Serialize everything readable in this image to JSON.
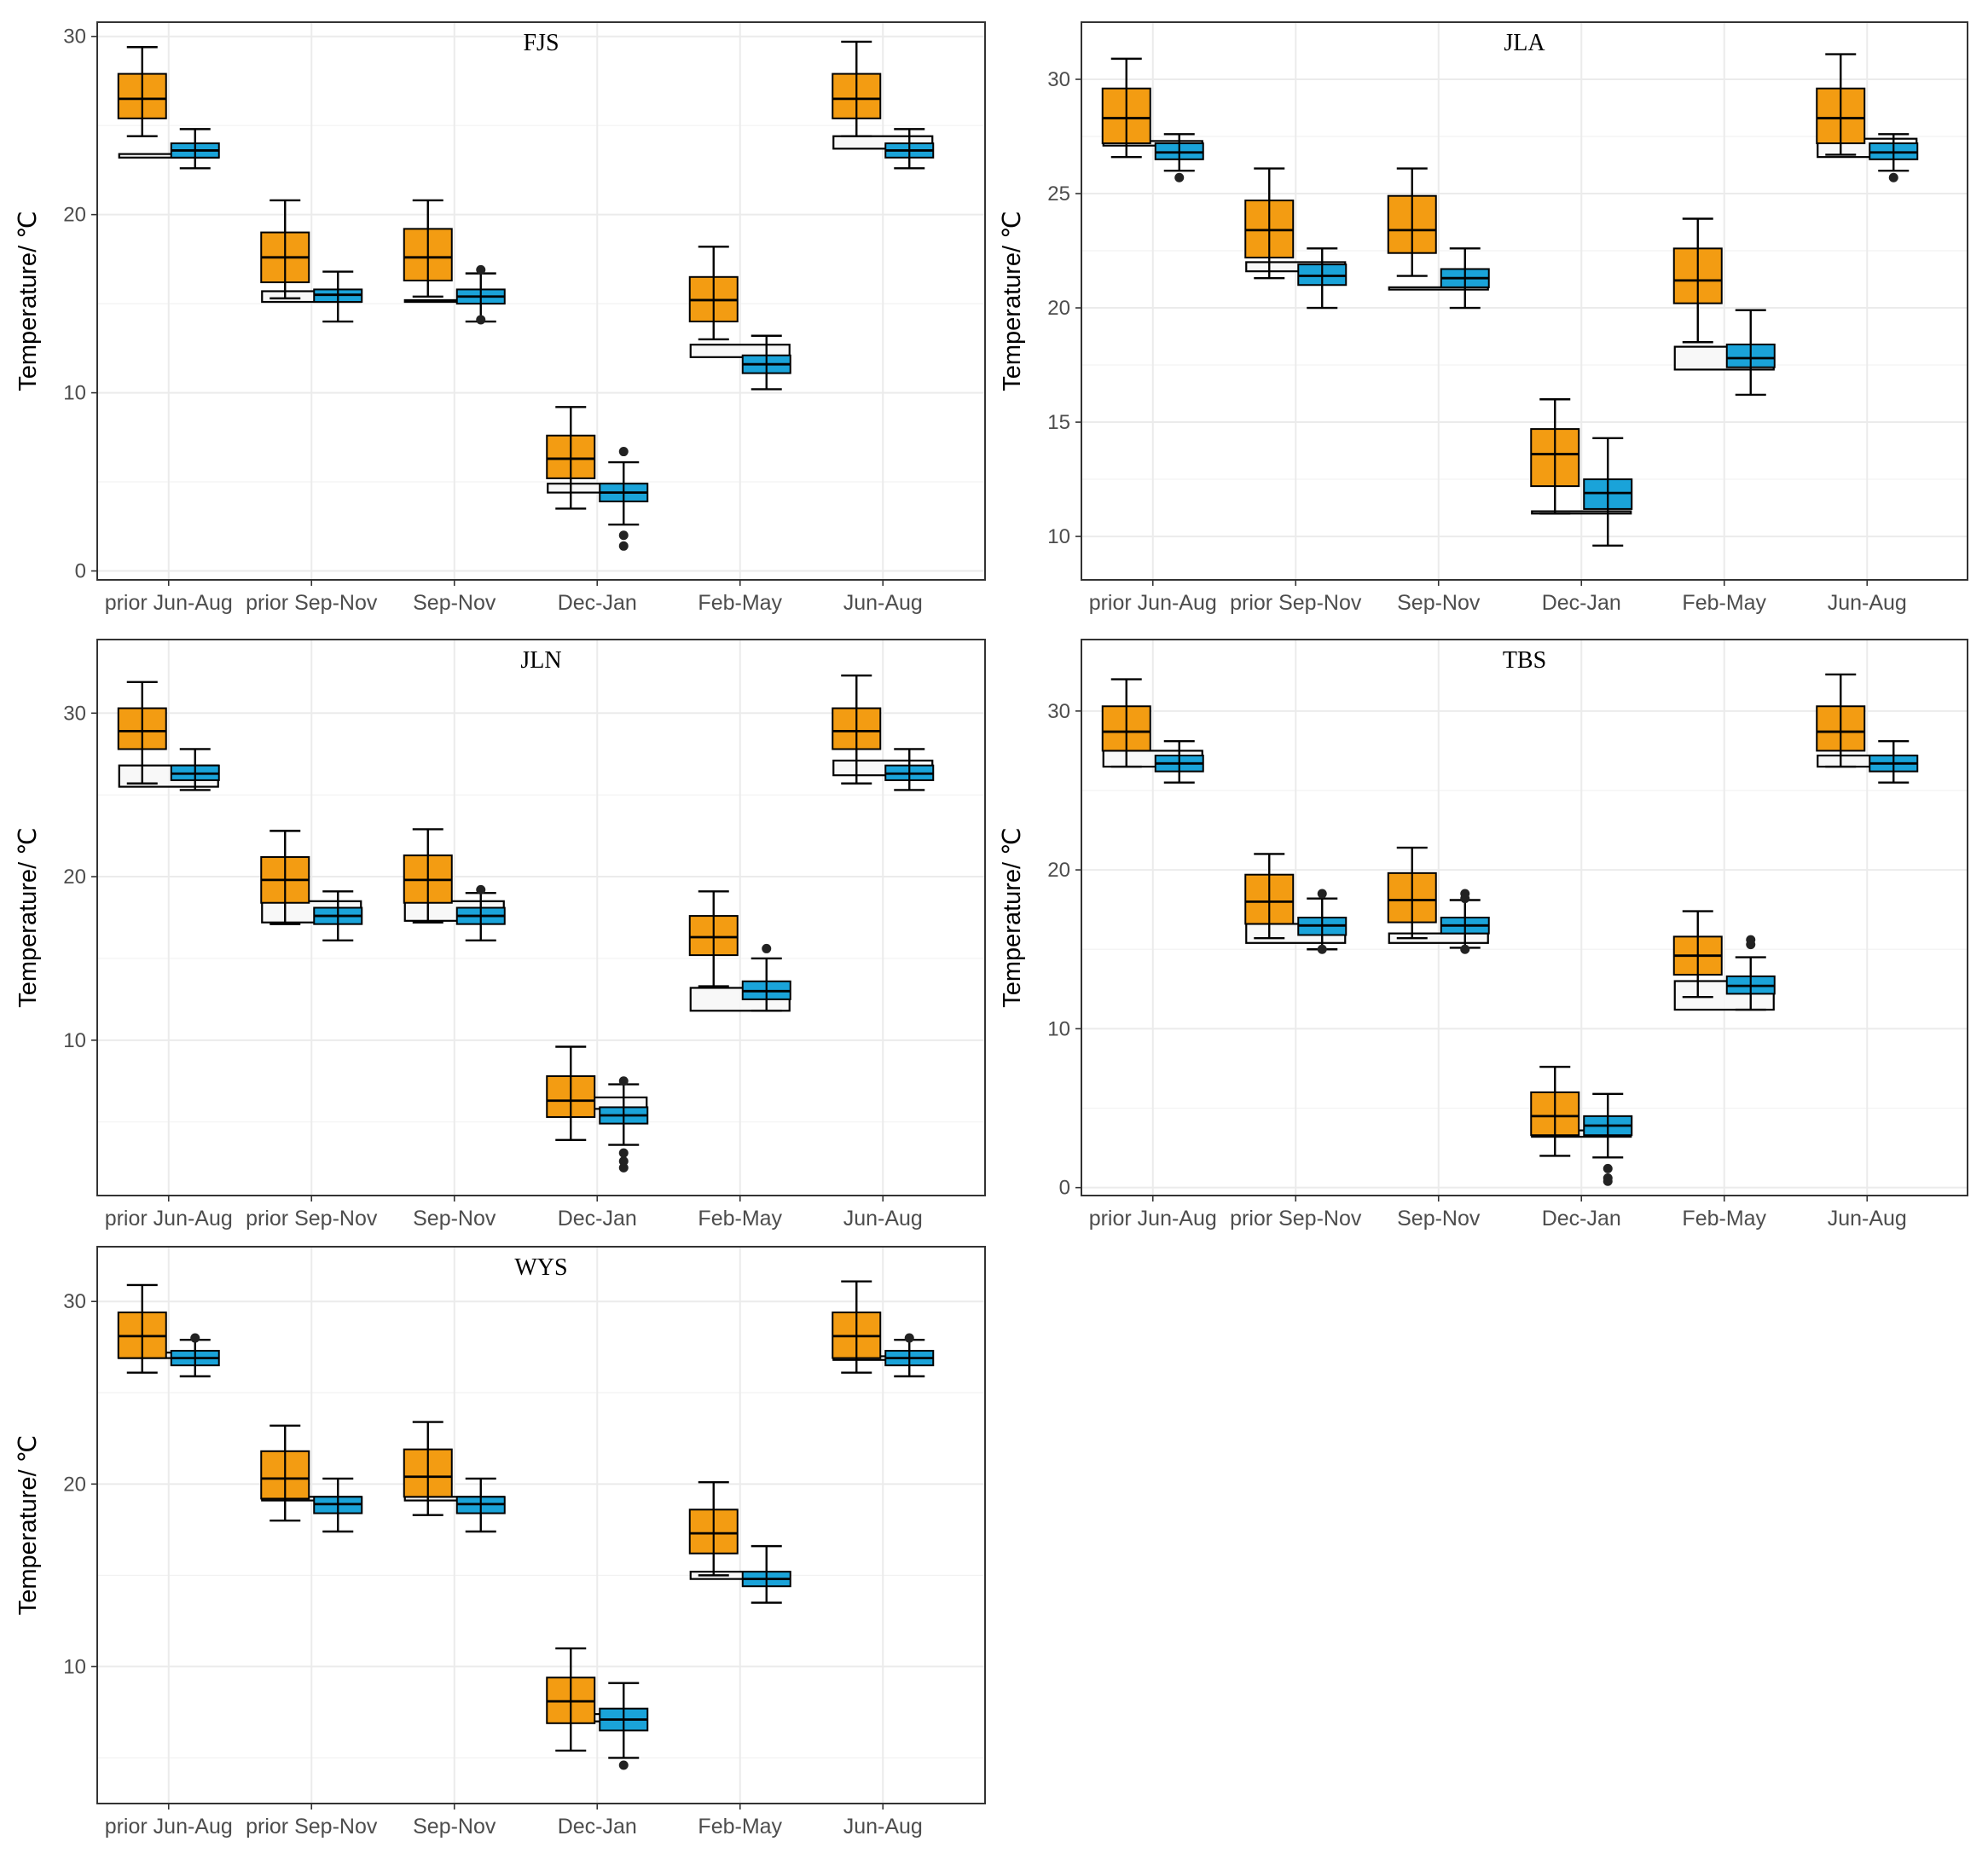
{
  "colors": {
    "orange": "#f39c12",
    "blue": "#1aa3d9",
    "ghost": "#f7f7f7",
    "grid": "#ebebeb",
    "axis_text": "#4d4d4d",
    "frame": "#333333"
  },
  "chart_data": [
    {
      "type": "box",
      "title": "FJS",
      "ylabel": "Temperature/ ℃",
      "ylim": [
        -0.5,
        30.8
      ],
      "yticks": [
        0,
        10,
        20,
        30
      ],
      "ytick_labels": [
        "0",
        "10",
        "20",
        "30"
      ],
      "categories": [
        "prior Jun-Aug",
        "prior Sep-Nov",
        "Sep-Nov",
        "Dec-Jan",
        "Feb-May",
        "Jun-Aug"
      ],
      "series": [
        {
          "name": "orange",
          "boxes": [
            {
              "min": 24.4,
              "q1": 25.4,
              "median": 26.5,
              "q3": 27.9,
              "max": 29.4,
              "outliers": []
            },
            {
              "min": 15.3,
              "q1": 16.2,
              "median": 17.6,
              "q3": 19.0,
              "max": 20.8,
              "outliers": []
            },
            {
              "min": 15.4,
              "q1": 16.3,
              "median": 17.6,
              "q3": 19.2,
              "max": 20.8,
              "outliers": []
            },
            {
              "min": 3.5,
              "q1": 5.2,
              "median": 6.3,
              "q3": 7.6,
              "max": 9.2,
              "outliers": []
            },
            {
              "min": 13.0,
              "q1": 14.0,
              "median": 15.2,
              "q3": 16.5,
              "max": 18.2,
              "outliers": []
            },
            {
              "min": 24.4,
              "q1": 25.4,
              "median": 26.5,
              "q3": 27.9,
              "max": 29.7,
              "outliers": []
            }
          ]
        },
        {
          "name": "blue",
          "boxes": [
            {
              "min": 22.6,
              "q1": 23.2,
              "median": 23.6,
              "q3": 24.0,
              "max": 24.8,
              "outliers": []
            },
            {
              "min": 14.0,
              "q1": 15.1,
              "median": 15.5,
              "q3": 15.8,
              "max": 16.8,
              "outliers": []
            },
            {
              "min": 14.0,
              "q1": 15.0,
              "median": 15.4,
              "q3": 15.8,
              "max": 16.7,
              "outliers": [
                16.9,
                14.1
              ]
            },
            {
              "min": 2.6,
              "q1": 3.9,
              "median": 4.4,
              "q3": 4.9,
              "max": 6.1,
              "outliers": [
                6.7,
                2.0,
                1.4
              ]
            },
            {
              "min": 10.2,
              "q1": 11.1,
              "median": 11.6,
              "q3": 12.1,
              "max": 13.2,
              "outliers": []
            },
            {
              "min": 22.6,
              "q1": 23.2,
              "median": 23.6,
              "q3": 24.0,
              "max": 24.8,
              "outliers": []
            }
          ]
        },
        {
          "name": "ghost",
          "boxes": [
            {
              "q1": 23.2,
              "q3": 23.4
            },
            {
              "q1": 15.1,
              "q3": 15.7
            },
            {
              "q1": 15.1,
              "q3": 15.2
            },
            {
              "q1": 4.4,
              "q3": 4.9
            },
            {
              "q1": 12.0,
              "q3": 12.7
            },
            {
              "q1": 23.7,
              "q3": 24.4
            }
          ]
        }
      ]
    },
    {
      "type": "box",
      "title": "JLA",
      "ylabel": "Temperature/ ℃",
      "ylim": [
        8.1,
        32.5
      ],
      "yticks": [
        10,
        15,
        20,
        25,
        30
      ],
      "ytick_labels": [
        "10",
        "15",
        "20",
        "25",
        "30"
      ],
      "categories": [
        "prior Jun-Aug",
        "prior Sep-Nov",
        "Sep-Nov",
        "Dec-Jan",
        "Feb-May",
        "Jun-Aug"
      ],
      "series": [
        {
          "name": "orange",
          "boxes": [
            {
              "min": 26.6,
              "q1": 27.2,
              "median": 28.3,
              "q3": 29.6,
              "max": 30.9,
              "outliers": []
            },
            {
              "min": 21.3,
              "q1": 22.2,
              "median": 23.4,
              "q3": 24.7,
              "max": 26.1,
              "outliers": []
            },
            {
              "min": 21.4,
              "q1": 22.4,
              "median": 23.4,
              "q3": 24.9,
              "max": 26.1,
              "outliers": []
            },
            {
              "min": 11.0,
              "q1": 12.2,
              "median": 13.6,
              "q3": 14.7,
              "max": 16.0,
              "outliers": []
            },
            {
              "min": 18.5,
              "q1": 20.2,
              "median": 21.2,
              "q3": 22.6,
              "max": 23.9,
              "outliers": []
            },
            {
              "min": 26.7,
              "q1": 27.2,
              "median": 28.3,
              "q3": 29.6,
              "max": 31.1,
              "outliers": []
            }
          ]
        },
        {
          "name": "blue",
          "boxes": [
            {
              "min": 26.0,
              "q1": 26.5,
              "median": 26.8,
              "q3": 27.2,
              "max": 27.6,
              "outliers": [
                25.7
              ]
            },
            {
              "min": 20.0,
              "q1": 21.0,
              "median": 21.4,
              "q3": 21.9,
              "max": 22.6,
              "outliers": []
            },
            {
              "min": 20.0,
              "q1": 20.9,
              "median": 21.3,
              "q3": 21.7,
              "max": 22.6,
              "outliers": []
            },
            {
              "min": 9.6,
              "q1": 11.2,
              "median": 11.9,
              "q3": 12.5,
              "max": 14.3,
              "outliers": []
            },
            {
              "min": 16.2,
              "q1": 17.4,
              "median": 17.8,
              "q3": 18.4,
              "max": 19.9,
              "outliers": []
            },
            {
              "min": 26.0,
              "q1": 26.5,
              "median": 26.8,
              "q3": 27.2,
              "max": 27.6,
              "outliers": [
                25.7
              ]
            }
          ]
        },
        {
          "name": "ghost",
          "boxes": [
            {
              "q1": 27.1,
              "q3": 27.3
            },
            {
              "q1": 21.6,
              "q3": 22.0
            },
            {
              "q1": 20.8,
              "q3": 20.9
            },
            {
              "q1": 11.0,
              "q3": 11.1
            },
            {
              "q1": 17.3,
              "q3": 18.3
            },
            {
              "q1": 26.6,
              "q3": 27.4
            }
          ]
        }
      ]
    },
    {
      "type": "box",
      "title": "JLN",
      "ylabel": "Temperature/ ℃",
      "ylim": [
        0.5,
        34.5
      ],
      "yticks": [
        10,
        20,
        30
      ],
      "ytick_labels": [
        "10",
        "20",
        "30"
      ],
      "categories": [
        "prior Jun-Aug",
        "prior Sep-Nov",
        "Sep-Nov",
        "Dec-Jan",
        "Feb-May",
        "Jun-Aug"
      ],
      "series": [
        {
          "name": "orange",
          "boxes": [
            {
              "min": 25.7,
              "q1": 27.8,
              "median": 28.9,
              "q3": 30.3,
              "max": 31.9,
              "outliers": []
            },
            {
              "min": 17.1,
              "q1": 18.4,
              "median": 19.8,
              "q3": 21.2,
              "max": 22.8,
              "outliers": []
            },
            {
              "min": 17.2,
              "q1": 18.4,
              "median": 19.8,
              "q3": 21.3,
              "max": 22.9,
              "outliers": []
            },
            {
              "min": 3.9,
              "q1": 5.3,
              "median": 6.3,
              "q3": 7.8,
              "max": 9.6,
              "outliers": []
            },
            {
              "min": 13.3,
              "q1": 15.2,
              "median": 16.3,
              "q3": 17.6,
              "max": 19.1,
              "outliers": []
            },
            {
              "min": 25.7,
              "q1": 27.8,
              "median": 28.9,
              "q3": 30.3,
              "max": 32.3,
              "outliers": []
            }
          ]
        },
        {
          "name": "blue",
          "boxes": [
            {
              "min": 25.3,
              "q1": 25.9,
              "median": 26.3,
              "q3": 26.8,
              "max": 27.8,
              "outliers": []
            },
            {
              "min": 16.1,
              "q1": 17.1,
              "median": 17.6,
              "q3": 18.1,
              "max": 19.1,
              "outliers": []
            },
            {
              "min": 16.1,
              "q1": 17.1,
              "median": 17.6,
              "q3": 18.1,
              "max": 19.0,
              "outliers": [
                19.2
              ]
            },
            {
              "min": 3.6,
              "q1": 4.9,
              "median": 5.4,
              "q3": 5.9,
              "max": 7.3,
              "outliers": [
                7.5,
                3.1,
                2.6,
                2.2
              ]
            },
            {
              "min": 11.8,
              "q1": 12.5,
              "median": 13.0,
              "q3": 13.6,
              "max": 15.0,
              "outliers": [
                15.6
              ]
            },
            {
              "min": 25.3,
              "q1": 25.9,
              "median": 26.3,
              "q3": 26.8,
              "max": 27.8,
              "outliers": []
            }
          ]
        },
        {
          "name": "ghost",
          "boxes": [
            {
              "q1": 25.5,
              "q3": 26.8
            },
            {
              "q1": 17.2,
              "q3": 18.5
            },
            {
              "q1": 17.3,
              "q3": 18.5
            },
            {
              "q1": 5.8,
              "q3": 6.5
            },
            {
              "q1": 11.8,
              "q3": 13.2
            },
            {
              "q1": 26.2,
              "q3": 27.1
            }
          ]
        }
      ]
    },
    {
      "type": "box",
      "title": "TBS",
      "ylabel": "Temperature/ ℃",
      "ylim": [
        -0.5,
        34.5
      ],
      "yticks": [
        0,
        10,
        20,
        30
      ],
      "ytick_labels": [
        "0",
        "10",
        "20",
        "30"
      ],
      "categories": [
        "prior Jun-Aug",
        "prior Sep-Nov",
        "Sep-Nov",
        "Dec-Jan",
        "Feb-May",
        "Jun-Aug"
      ],
      "series": [
        {
          "name": "orange",
          "boxes": [
            {
              "min": 26.5,
              "q1": 27.5,
              "median": 28.7,
              "q3": 30.3,
              "max": 32.0,
              "outliers": []
            },
            {
              "min": 15.7,
              "q1": 16.6,
              "median": 18.0,
              "q3": 19.7,
              "max": 21.0,
              "outliers": []
            },
            {
              "min": 15.7,
              "q1": 16.7,
              "median": 18.1,
              "q3": 19.8,
              "max": 21.4,
              "outliers": []
            },
            {
              "min": 2.0,
              "q1": 3.3,
              "median": 4.5,
              "q3": 6.0,
              "max": 7.6,
              "outliers": []
            },
            {
              "min": 12.0,
              "q1": 13.4,
              "median": 14.6,
              "q3": 15.8,
              "max": 17.4,
              "outliers": []
            },
            {
              "min": 26.5,
              "q1": 27.5,
              "median": 28.7,
              "q3": 30.3,
              "max": 32.3,
              "outliers": []
            }
          ]
        },
        {
          "name": "blue",
          "boxes": [
            {
              "min": 25.5,
              "q1": 26.2,
              "median": 26.7,
              "q3": 27.2,
              "max": 28.1,
              "outliers": []
            },
            {
              "min": 15.0,
              "q1": 15.9,
              "median": 16.5,
              "q3": 17.0,
              "max": 18.2,
              "outliers": [
                18.5,
                15.0
              ]
            },
            {
              "min": 15.1,
              "q1": 16.0,
              "median": 16.5,
              "q3": 17.0,
              "max": 18.1,
              "outliers": [
                18.5,
                18.2,
                15.0
              ]
            },
            {
              "min": 1.9,
              "q1": 3.3,
              "median": 3.9,
              "q3": 4.5,
              "max": 5.9,
              "outliers": [
                1.2,
                0.6,
                0.4
              ]
            },
            {
              "min": 11.2,
              "q1": 12.2,
              "median": 12.7,
              "q3": 13.3,
              "max": 14.5,
              "outliers": [
                15.6,
                15.3
              ]
            },
            {
              "min": 25.5,
              "q1": 26.2,
              "median": 26.7,
              "q3": 27.2,
              "max": 28.1,
              "outliers": []
            }
          ]
        },
        {
          "name": "ghost",
          "boxes": [
            {
              "q1": 26.5,
              "q3": 27.5
            },
            {
              "q1": 15.4,
              "q3": 16.6
            },
            {
              "q1": 15.4,
              "q3": 16.0
            },
            {
              "q1": 3.2,
              "q3": 3.6
            },
            {
              "q1": 11.2,
              "q3": 13.0
            },
            {
              "q1": 26.5,
              "q3": 27.2
            }
          ]
        }
      ]
    },
    {
      "type": "box",
      "title": "WYS",
      "ylabel": "Temperature/ ℃",
      "ylim": [
        2.5,
        33.0
      ],
      "yticks": [
        10,
        20,
        30
      ],
      "ytick_labels": [
        "10",
        "20",
        "30"
      ],
      "categories": [
        "prior Jun-Aug",
        "prior Sep-Nov",
        "Sep-Nov",
        "Dec-Jan",
        "Feb-May",
        "Jun-Aug"
      ],
      "series": [
        {
          "name": "orange",
          "boxes": [
            {
              "min": 26.1,
              "q1": 26.9,
              "median": 28.1,
              "q3": 29.4,
              "max": 30.9,
              "outliers": []
            },
            {
              "min": 18.0,
              "q1": 19.2,
              "median": 20.3,
              "q3": 21.8,
              "max": 23.2,
              "outliers": []
            },
            {
              "min": 18.3,
              "q1": 19.3,
              "median": 20.4,
              "q3": 21.9,
              "max": 23.4,
              "outliers": []
            },
            {
              "min": 5.4,
              "q1": 6.9,
              "median": 8.1,
              "q3": 9.4,
              "max": 11.0,
              "outliers": []
            },
            {
              "min": 15.0,
              "q1": 16.2,
              "median": 17.3,
              "q3": 18.6,
              "max": 20.1,
              "outliers": []
            },
            {
              "min": 26.1,
              "q1": 26.9,
              "median": 28.1,
              "q3": 29.4,
              "max": 31.1,
              "outliers": []
            }
          ]
        },
        {
          "name": "blue",
          "boxes": [
            {
              "min": 25.9,
              "q1": 26.5,
              "median": 26.9,
              "q3": 27.3,
              "max": 27.9,
              "outliers": [
                28.0
              ]
            },
            {
              "min": 17.4,
              "q1": 18.4,
              "median": 18.9,
              "q3": 19.3,
              "max": 20.3,
              "outliers": []
            },
            {
              "min": 17.4,
              "q1": 18.4,
              "median": 18.9,
              "q3": 19.3,
              "max": 20.3,
              "outliers": []
            },
            {
              "min": 5.0,
              "q1": 6.5,
              "median": 7.1,
              "q3": 7.7,
              "max": 9.1,
              "outliers": [
                4.6
              ]
            },
            {
              "min": 13.5,
              "q1": 14.4,
              "median": 14.8,
              "q3": 15.2,
              "max": 16.6,
              "outliers": []
            },
            {
              "min": 25.9,
              "q1": 26.5,
              "median": 26.9,
              "q3": 27.3,
              "max": 27.9,
              "outliers": [
                28.0
              ]
            }
          ]
        },
        {
          "name": "ghost",
          "boxes": [
            {
              "q1": 26.9,
              "q3": 27.2
            },
            {
              "q1": 19.1,
              "q3": 19.3
            },
            {
              "q1": 19.1,
              "q3": 19.3
            },
            {
              "q1": 7.0,
              "q3": 7.4
            },
            {
              "q1": 14.8,
              "q3": 15.2
            },
            {
              "q1": 26.8,
              "q3": 27.0
            }
          ]
        }
      ]
    }
  ]
}
